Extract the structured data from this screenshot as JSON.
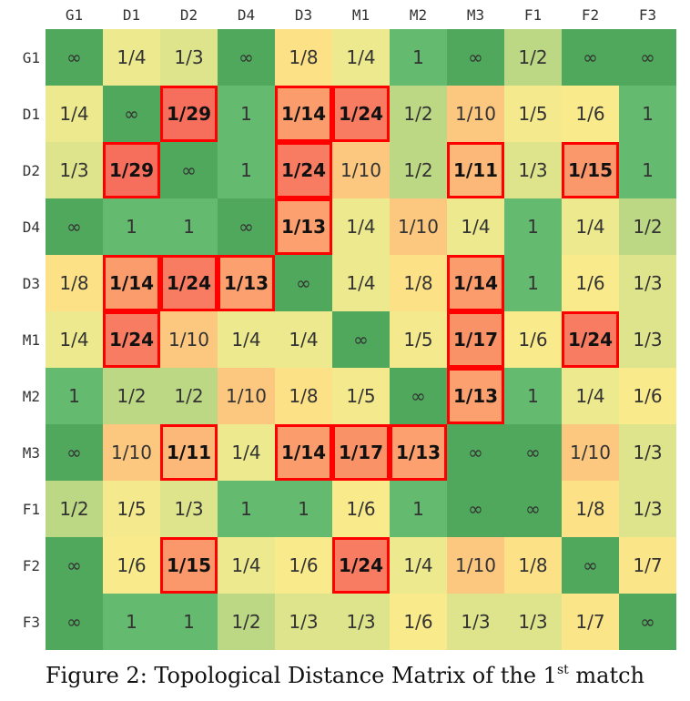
{
  "chart_data": {
    "type": "heatmap",
    "title": "",
    "x_labels": [
      "G1",
      "D1",
      "D2",
      "D4",
      "D3",
      "M1",
      "M2",
      "M3",
      "F1",
      "F2",
      "F3"
    ],
    "y_labels": [
      "G1",
      "D1",
      "D2",
      "D4",
      "D3",
      "M1",
      "M2",
      "M3",
      "F1",
      "F2",
      "F3"
    ],
    "cells": [
      [
        "∞",
        "1/4",
        "1/3",
        "∞",
        "1/8",
        "1/4",
        "1",
        "∞",
        "1/2",
        "∞",
        "∞"
      ],
      [
        "1/4",
        "∞",
        "1/29",
        "1",
        "1/14",
        "1/24",
        "1/2",
        "1/10",
        "1/5",
        "1/6",
        "1"
      ],
      [
        "1/3",
        "1/29",
        "∞",
        "1",
        "1/24",
        "1/10",
        "1/2",
        "1/11",
        "1/3",
        "1/15",
        "1"
      ],
      [
        "∞",
        "1",
        "1",
        "∞",
        "1/13",
        "1/4",
        "1/10",
        "1/4",
        "1",
        "1/4",
        "1/2"
      ],
      [
        "1/8",
        "1/14",
        "1/24",
        "1/13",
        "∞",
        "1/4",
        "1/8",
        "1/14",
        "1",
        "1/6",
        "1/3"
      ],
      [
        "1/4",
        "1/24",
        "1/10",
        "1/4",
        "1/4",
        "∞",
        "1/5",
        "1/17",
        "1/6",
        "1/24",
        "1/3"
      ],
      [
        "1",
        "1/2",
        "1/2",
        "1/10",
        "1/8",
        "1/5",
        "∞",
        "1/13",
        "1",
        "1/4",
        "1/6"
      ],
      [
        "∞",
        "1/10",
        "1/11",
        "1/4",
        "1/14",
        "1/17",
        "1/13",
        "∞",
        "∞",
        "1/10",
        "1/3"
      ],
      [
        "1/2",
        "1/5",
        "1/3",
        "1",
        "1",
        "1/6",
        "1",
        "∞",
        "∞",
        "1/8",
        "1/3"
      ],
      [
        "∞",
        "1/6",
        "1/15",
        "1/4",
        "1/6",
        "1/24",
        "1/4",
        "1/10",
        "1/8",
        "∞",
        "1/7"
      ],
      [
        "∞",
        "1",
        "1",
        "1/2",
        "1/3",
        "1/3",
        "1/6",
        "1/3",
        "1/3",
        "1/7",
        "∞"
      ]
    ],
    "highlighted": [
      [
        1,
        2
      ],
      [
        1,
        4
      ],
      [
        1,
        5
      ],
      [
        2,
        1
      ],
      [
        2,
        4
      ],
      [
        2,
        7
      ],
      [
        2,
        9
      ],
      [
        3,
        4
      ],
      [
        4,
        1
      ],
      [
        4,
        2
      ],
      [
        4,
        3
      ],
      [
        4,
        7
      ],
      [
        5,
        1
      ],
      [
        5,
        7
      ],
      [
        5,
        9
      ],
      [
        6,
        7
      ],
      [
        7,
        2
      ],
      [
        7,
        4
      ],
      [
        7,
        5
      ],
      [
        7,
        6
      ],
      [
        9,
        2
      ],
      [
        9,
        5
      ]
    ],
    "highlight_color": "#ff0000"
  },
  "caption": {
    "prefix": "Figure 2: Topological Distance Matrix of the 1",
    "superscript": "st",
    "suffix": " match"
  }
}
